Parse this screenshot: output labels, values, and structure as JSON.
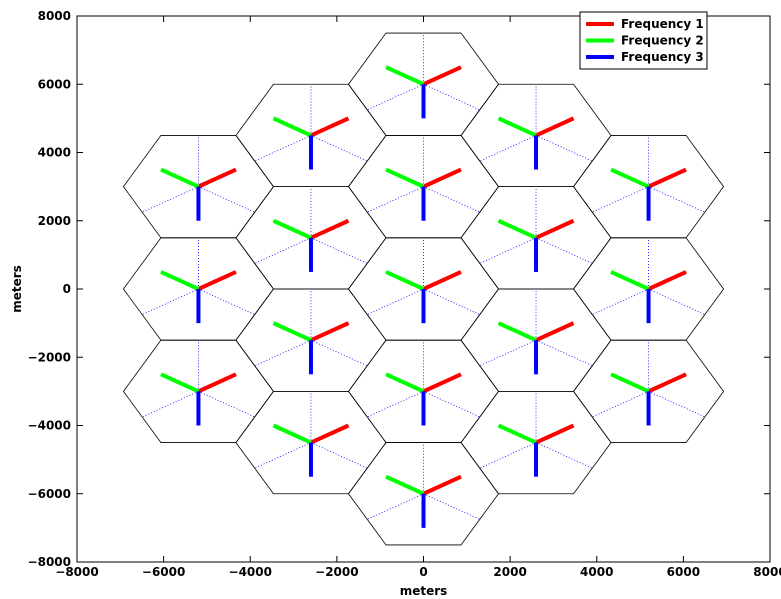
{
  "chart_data": {
    "type": "scatter",
    "title": "",
    "xlabel": "meters",
    "ylabel": "meters",
    "xlim": [
      -8000,
      8000
    ],
    "ylim": [
      -8000,
      8000
    ],
    "xticks": [
      -8000,
      -6000,
      -4000,
      -2000,
      0,
      2000,
      4000,
      6000,
      8000
    ],
    "yticks": [
      -8000,
      -6000,
      -4000,
      -2000,
      0,
      2000,
      4000,
      6000,
      8000
    ],
    "xtick_labels": [
      "−8000",
      "−6000",
      "−4000",
      "−2000",
      "0",
      "2000",
      "4000",
      "6000",
      "8000"
    ],
    "ytick_labels": [
      "−8000",
      "−6000",
      "−4000",
      "−2000",
      "0",
      "2000",
      "4000",
      "6000",
      "8000"
    ],
    "grid": false,
    "hex_radius": 1732,
    "sector_line_length": 1000,
    "cell_centers": [
      {
        "x": 0,
        "y": 6000
      },
      {
        "x": -2598,
        "y": 4500
      },
      {
        "x": 2598,
        "y": 4500
      },
      {
        "x": -5196,
        "y": 3000
      },
      {
        "x": 0,
        "y": 3000
      },
      {
        "x": 5196,
        "y": 3000
      },
      {
        "x": -2598,
        "y": 1500
      },
      {
        "x": 2598,
        "y": 1500
      },
      {
        "x": -5196,
        "y": 0
      },
      {
        "x": 0,
        "y": 0
      },
      {
        "x": 5196,
        "y": 0
      },
      {
        "x": -2598,
        "y": -1500
      },
      {
        "x": 2598,
        "y": -1500
      },
      {
        "x": -5196,
        "y": -3000
      },
      {
        "x": 0,
        "y": -3000
      },
      {
        "x": 5196,
        "y": -3000
      },
      {
        "x": -2598,
        "y": -4500
      },
      {
        "x": 2598,
        "y": -4500
      },
      {
        "x": 0,
        "y": -6000
      }
    ],
    "series": [
      {
        "name": "Frequency 1",
        "color": "#ff0000",
        "direction_deg": 30
      },
      {
        "name": "Frequency 2",
        "color": "#00ff00",
        "direction_deg": 150
      },
      {
        "name": "Frequency 3",
        "color": "#0000ff",
        "direction_deg": 270
      }
    ],
    "hex_color": "#000000",
    "sector_boundary_color": "#0000ff",
    "legend_position": "top-right"
  }
}
